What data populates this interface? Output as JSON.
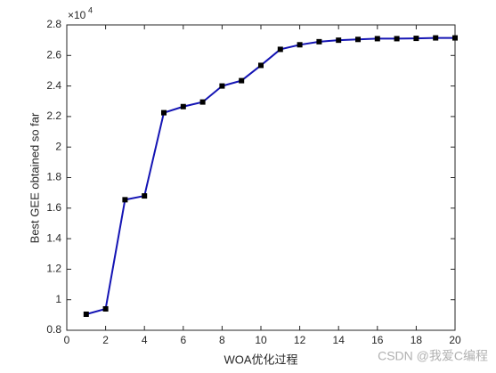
{
  "chart_data": {
    "type": "line",
    "x_label": "WOA优化过程",
    "y_label": "Best GEE obtained so far",
    "y_multiplier": {
      "base": "×10",
      "exponent": "4"
    },
    "x": [
      1,
      2,
      3,
      4,
      5,
      6,
      7,
      8,
      9,
      10,
      11,
      12,
      13,
      14,
      15,
      16,
      17,
      18,
      19,
      20
    ],
    "series": [
      {
        "color": "#1414b4",
        "marker_color": "#000000",
        "values": [
          0.905,
          0.94,
          1.655,
          1.68,
          2.225,
          2.265,
          2.295,
          2.4,
          2.435,
          2.535,
          2.64,
          2.67,
          2.69,
          2.7,
          2.705,
          2.71,
          2.71,
          2.712,
          2.715,
          2.715
        ]
      }
    ],
    "xlim": [
      0,
      20
    ],
    "xticks": [
      0,
      2,
      4,
      6,
      8,
      10,
      12,
      14,
      16,
      18,
      20
    ],
    "ylim": [
      0.8,
      2.8
    ],
    "yticks": [
      0.8,
      1,
      1.2,
      1.4,
      1.6,
      1.8,
      2,
      2.2,
      2.4,
      2.6,
      2.8
    ],
    "grid": false
  },
  "watermark": "CSDN @我爱C编程"
}
